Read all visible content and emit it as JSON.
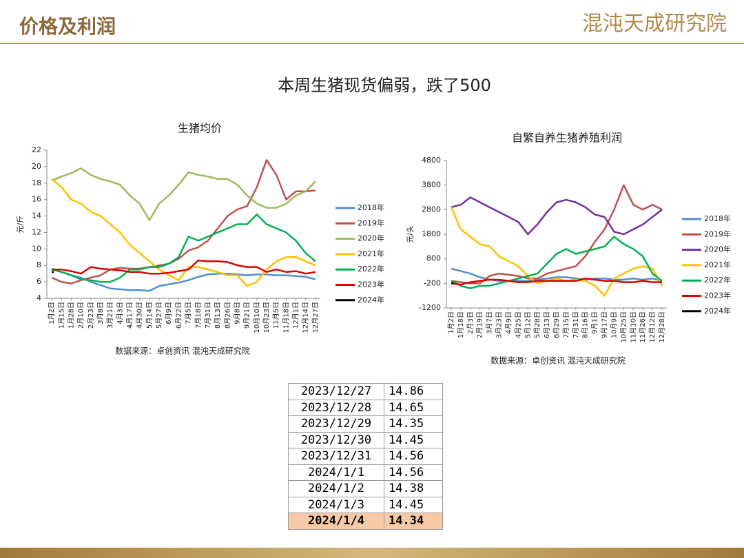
{
  "header": {
    "title": "价格及利润",
    "logo": "混沌天成研究院"
  },
  "title": "本周生猪现货偏弱，跌了500",
  "chart_data": [
    {
      "type": "line",
      "title": "生猪均价",
      "y_label": "元/斤",
      "source": "数据来源：卓创资讯 混沌天成研究院",
      "categories": [
        "1月2日",
        "1月15日",
        "1月28日",
        "2月10日",
        "2月23日",
        "3月8日",
        "3月21日",
        "4月3日",
        "4月17日",
        "4月30日",
        "5月14日",
        "5月27日",
        "6月9日",
        "6月22日",
        "7月5日",
        "7月18日",
        "7月31日",
        "8月13日",
        "8月26日",
        "9月8日",
        "9月21日",
        "10月10日",
        "10月23日",
        "11月5日",
        "11月18日",
        "12月1日",
        "12月14日",
        "12月27日"
      ],
      "ylim": [
        4,
        22
      ],
      "yticks": [
        4,
        6,
        8,
        10,
        12,
        14,
        16,
        18,
        20,
        22
      ],
      "legend": "right",
      "series": [
        {
          "name": "2018年",
          "color": "#4f8fd0",
          "values": [
            7.6,
            7.2,
            6.8,
            6.5,
            6.0,
            5.6,
            5.2,
            5.1,
            5.0,
            5.0,
            4.9,
            5.5,
            5.7,
            5.9,
            6.2,
            6.6,
            6.9,
            7.0,
            7.0,
            6.9,
            6.8,
            6.9,
            6.9,
            6.8,
            6.8,
            6.7,
            6.6,
            6.3
          ]
        },
        {
          "name": "2019年",
          "color": "#c0504d",
          "values": [
            6.5,
            6.0,
            5.8,
            6.2,
            6.5,
            6.8,
            7.5,
            7.7,
            7.6,
            7.6,
            7.8,
            8.0,
            8.2,
            8.8,
            9.8,
            10.2,
            11.0,
            12.5,
            14.0,
            14.8,
            15.2,
            17.5,
            20.8,
            19.0,
            16.0,
            17.0,
            17.0,
            17.1
          ]
        },
        {
          "name": "2020年",
          "color": "#9bbb59",
          "values": [
            18.3,
            18.8,
            19.2,
            19.8,
            19.0,
            18.5,
            18.2,
            17.8,
            16.5,
            15.5,
            13.5,
            15.5,
            16.5,
            17.8,
            19.3,
            19.0,
            18.8,
            18.5,
            18.5,
            17.8,
            16.5,
            15.5,
            15.0,
            15.0,
            15.5,
            16.5,
            17.0,
            18.2
          ]
        },
        {
          "name": "2021年",
          "color": "#ffc000",
          "values": [
            18.5,
            17.5,
            16.0,
            15.5,
            14.5,
            14.0,
            13.0,
            12.0,
            10.5,
            9.5,
            8.5,
            7.5,
            6.8,
            6.2,
            7.8,
            7.8,
            7.5,
            7.2,
            6.8,
            6.8,
            5.5,
            6.0,
            7.5,
            8.5,
            9.0,
            9.0,
            8.5,
            8.0
          ]
        },
        {
          "name": "2022年",
          "color": "#00b050",
          "values": [
            7.5,
            7.2,
            6.8,
            6.3,
            6.2,
            6.0,
            6.0,
            6.5,
            7.5,
            7.5,
            7.8,
            7.8,
            8.2,
            9.0,
            11.5,
            11.0,
            11.5,
            12.0,
            12.5,
            13.0,
            13.0,
            14.2,
            13.0,
            12.5,
            12.0,
            11.0,
            9.5,
            8.5
          ]
        },
        {
          "name": "2023年",
          "color": "#e00000",
          "values": [
            7.5,
            7.5,
            7.3,
            7.0,
            7.8,
            7.6,
            7.5,
            7.4,
            7.2,
            7.2,
            7.0,
            7.0,
            7.1,
            7.3,
            7.5,
            8.6,
            8.5,
            8.5,
            8.4,
            8.0,
            7.8,
            7.8,
            7.2,
            7.5,
            7.2,
            7.3,
            7.0,
            7.2
          ]
        },
        {
          "name": "2024年",
          "color": "#000000",
          "values": [
            7.2,
            null,
            null,
            null,
            null,
            null,
            null,
            null,
            null,
            null,
            null,
            null,
            null,
            null,
            null,
            null,
            null,
            null,
            null,
            null,
            null,
            null,
            null,
            null,
            null,
            null,
            null,
            null
          ]
        }
      ]
    },
    {
      "type": "line",
      "title": "自繁自养生猪养殖利润",
      "y_label": "元/头",
      "source": "数据来源：卓创资讯 混沌天成研究院",
      "categories": [
        "1月2日",
        "1月18日",
        "2月3日",
        "2月19日",
        "3月7日",
        "3月23日",
        "4月9日",
        "4月25日",
        "5月12日",
        "5月28日",
        "6月13日",
        "6月29日",
        "7月15日",
        "7月31日",
        "8月16日",
        "9月1日",
        "9月17日",
        "10月9日",
        "10月25日",
        "11月10日",
        "11月26日",
        "12月12日",
        "12月28日"
      ],
      "ylim": [
        -1200,
        4800
      ],
      "yticks": [
        -1200,
        -200,
        800,
        1800,
        2800,
        3800,
        4800
      ],
      "legend": "right",
      "series": [
        {
          "name": "2018年",
          "color": "#4f8fd0",
          "values": [
            400,
            300,
            200,
            50,
            -50,
            -100,
            -100,
            -100,
            -100,
            -50,
            0,
            50,
            50,
            0,
            -50,
            0,
            0,
            -50,
            -50,
            0,
            -50,
            0,
            -100
          ]
        },
        {
          "name": "2019年",
          "color": "#c0504d",
          "values": [
            -100,
            -150,
            -200,
            -200,
            100,
            200,
            150,
            100,
            0,
            0,
            200,
            300,
            400,
            500,
            900,
            1500,
            2000,
            2800,
            3800,
            3000,
            2800,
            3000,
            2800
          ]
        },
        {
          "name": "2020年",
          "color": "#7030a0",
          "values": [
            2900,
            3000,
            3300,
            3100,
            2900,
            2700,
            2500,
            2300,
            1800,
            2200,
            2700,
            3100,
            3200,
            3100,
            2900,
            2600,
            2500,
            1900,
            1800,
            2000,
            2200,
            2500,
            2800
          ]
        },
        {
          "name": "2021年",
          "color": "#ffc000",
          "values": [
            2900,
            2000,
            1700,
            1400,
            1300,
            900,
            700,
            500,
            100,
            -200,
            -100,
            0,
            -100,
            -50,
            -100,
            -300,
            -700,
            0,
            200,
            400,
            500,
            400,
            -300
          ]
        },
        {
          "name": "2022年",
          "color": "#00b050",
          "values": [
            -100,
            -300,
            -400,
            -300,
            -300,
            -200,
            -100,
            0,
            100,
            200,
            600,
            1000,
            1200,
            1000,
            1100,
            1200,
            1300,
            1700,
            1400,
            1200,
            900,
            200,
            -100
          ]
        },
        {
          "name": "2023年",
          "color": "#e00000",
          "values": [
            -200,
            -250,
            -150,
            -100,
            -50,
            -50,
            -100,
            -150,
            -150,
            -100,
            -100,
            -100,
            -100,
            -100,
            0,
            -50,
            -100,
            -100,
            -150,
            -150,
            -100,
            -150,
            -150
          ]
        },
        {
          "name": "2024年",
          "color": "#000000",
          "values": [
            -200,
            null,
            null,
            null,
            null,
            null,
            null,
            null,
            null,
            null,
            null,
            null,
            null,
            null,
            null,
            null,
            null,
            null,
            null,
            null,
            null,
            null,
            null
          ]
        }
      ]
    }
  ],
  "table": {
    "rows": [
      [
        "2023/12/27",
        "14.86"
      ],
      [
        "2023/12/28",
        "14.65"
      ],
      [
        "2023/12/29",
        "14.35"
      ],
      [
        "2023/12/30",
        "14.45"
      ],
      [
        "2023/12/31",
        "14.56"
      ],
      [
        "2024/1/1",
        "14.56"
      ],
      [
        "2024/1/2",
        "14.38"
      ],
      [
        "2024/1/3",
        "14.45"
      ],
      [
        "2024/1/4",
        "14.34"
      ]
    ]
  }
}
